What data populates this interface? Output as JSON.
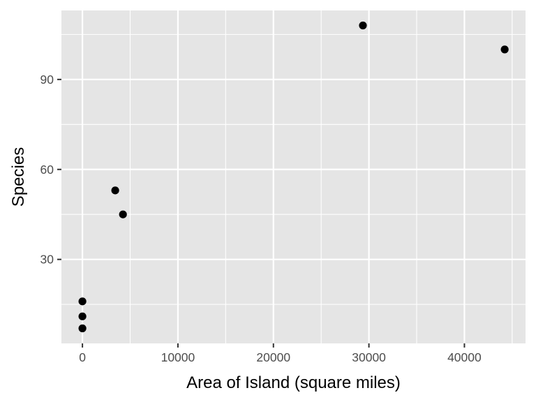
{
  "chart_data": {
    "type": "scatter",
    "xlabel": "Area of Island (square miles)",
    "ylabel": "Species",
    "xlim": [
      -2200,
      46400
    ],
    "ylim": [
      2,
      113
    ],
    "xticks": [
      0,
      10000,
      20000,
      30000,
      40000
    ],
    "xtick_labels": [
      "0",
      "10000",
      "20000",
      "30000",
      "40000"
    ],
    "yticks": [
      30,
      60,
      90
    ],
    "ytick_labels": [
      "30",
      "60",
      "90"
    ],
    "grid": true,
    "points": [
      {
        "x": 0,
        "y": 7
      },
      {
        "x": 0,
        "y": 11
      },
      {
        "x": 0,
        "y": 16
      },
      {
        "x": 3435,
        "y": 53
      },
      {
        "x": 4245,
        "y": 45
      },
      {
        "x": 29371,
        "y": 108
      },
      {
        "x": 44218,
        "y": 100
      }
    ],
    "colors": {
      "panel": "#e5e5e5",
      "grid": "#ffffff",
      "point": "#000000"
    }
  }
}
